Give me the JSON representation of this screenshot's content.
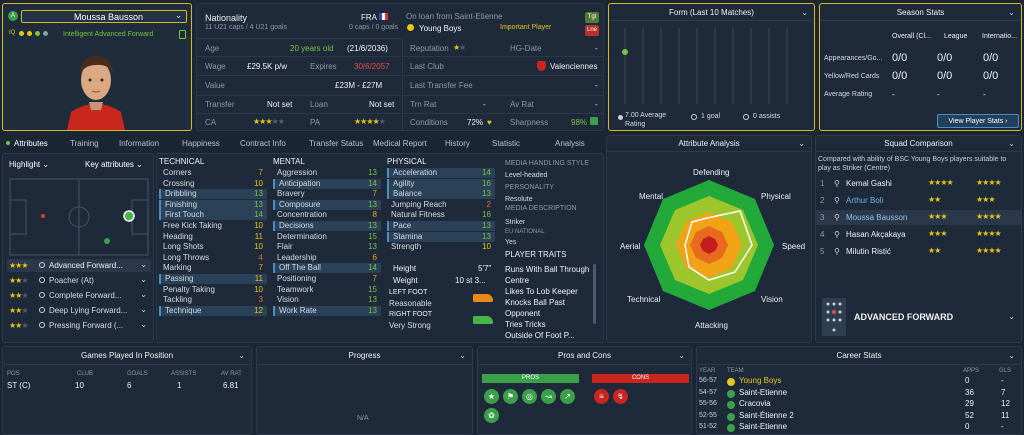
{
  "player": {
    "name": "Moussa Bausson",
    "role_line": "Intelligent Advanced Forward",
    "nationality_label": "Nationality",
    "nation": "FRA",
    "caps": "11 U21 caps / 4 U21 goals",
    "caps_right": "0 caps / 0 goals",
    "loan_text": "On loan from Saint-Etienne",
    "club": "Young Boys",
    "important": "Important Player",
    "age_label": "Age",
    "age": "20 years old",
    "dob": "(21/6/2036)",
    "wage_label": "Wage",
    "wage": "£29.5K p/w",
    "expires_label": "Expires",
    "expires": "30/6/2057",
    "value_label": "Value",
    "value": "£23M - £27M",
    "transfer_label": "Transfer",
    "transfer": "Not set",
    "loan_label": "Loan",
    "loan": "Not set",
    "ca_label": "CA",
    "pa_label": "PA",
    "reputation_label": "Reputation",
    "hgdate_label": "HG-Date",
    "hgdate": "-",
    "lastclub_label": "Last Club",
    "lastclub": "Valenciennes",
    "fee_label": "Last Transfer Fee",
    "fee": "-",
    "trnrat_label": "Trn Rat",
    "trnrat": "-",
    "avrat_label": "Av Rat",
    "avrat": "-",
    "conditions_label": "Conditions",
    "conditions": "72%",
    "sharpness_label": "Sharpness",
    "sharpness": "98%",
    "badge_tgt": "Tgt",
    "badge_lne": "Lne"
  },
  "form": {
    "title": "Form (Last 10 Matches)",
    "avg": "7.00 Average Rating",
    "goals": "1 goal",
    "assists": "0 assists"
  },
  "season": {
    "title": "Season Stats",
    "cols": [
      "Overall (Cl...",
      "League",
      "Internatio..."
    ],
    "rows": [
      {
        "label": "Appearances/Go...",
        "vals": [
          "0/0",
          "0/0",
          "0/0"
        ]
      },
      {
        "label": "Yellow/Red Cards",
        "vals": [
          "0/0",
          "0/0",
          "0/0"
        ]
      },
      {
        "label": "Average Rating",
        "vals": [
          "-",
          "-",
          "-"
        ]
      }
    ],
    "button": "View Player Stats"
  },
  "tabs": [
    "Attributes",
    "Training",
    "Information",
    "Happiness",
    "Contract Info",
    "Transfer Status",
    "Medical Report",
    "History",
    "Statistic",
    "Analysis"
  ],
  "left": {
    "highlight": "Highlight",
    "key_attributes": "Key attributes",
    "roles": [
      "Advanced Forward...",
      "Poacher (At)",
      "Complete Forward...",
      "Deep Lying Forward...",
      "Pressing Forward (..."
    ]
  },
  "technical": {
    "title": "TECHNICAL",
    "rows": [
      {
        "n": "Corners",
        "v": "7"
      },
      {
        "n": "Crossing",
        "v": "10"
      },
      {
        "n": "Dribbling",
        "v": "13"
      },
      {
        "n": "Finishing",
        "v": "13"
      },
      {
        "n": "First Touch",
        "v": "14"
      },
      {
        "n": "Free Kick Taking",
        "v": "10"
      },
      {
        "n": "Heading",
        "v": "11"
      },
      {
        "n": "Long Shots",
        "v": "10"
      },
      {
        "n": "Long Throws",
        "v": "4"
      },
      {
        "n": "Marking",
        "v": "7"
      },
      {
        "n": "Passing",
        "v": "11"
      },
      {
        "n": "Penalty Taking",
        "v": "10"
      },
      {
        "n": "Tackling",
        "v": "3"
      },
      {
        "n": "Technique",
        "v": "12"
      }
    ]
  },
  "mental": {
    "title": "MENTAL",
    "rows": [
      {
        "n": "Aggression",
        "v": "13"
      },
      {
        "n": "Anticipation",
        "v": "14"
      },
      {
        "n": "Bravery",
        "v": "7"
      },
      {
        "n": "Composure",
        "v": "13"
      },
      {
        "n": "Concentration",
        "v": "8"
      },
      {
        "n": "Decisions",
        "v": "13"
      },
      {
        "n": "Determination",
        "v": "15"
      },
      {
        "n": "Flair",
        "v": "13"
      },
      {
        "n": "Leadership",
        "v": "6"
      },
      {
        "n": "Off The Ball",
        "v": "14"
      },
      {
        "n": "Positioning",
        "v": "7"
      },
      {
        "n": "Teamwork",
        "v": "15"
      },
      {
        "n": "Vision",
        "v": "13"
      },
      {
        "n": "Work Rate",
        "v": "13"
      }
    ]
  },
  "physical": {
    "title": "PHYSICAL",
    "rows": [
      {
        "n": "Acceleration",
        "v": "14"
      },
      {
        "n": "Agility",
        "v": "16"
      },
      {
        "n": "Balance",
        "v": "13"
      },
      {
        "n": "Jumping Reach",
        "v": "2"
      },
      {
        "n": "Natural Fitness",
        "v": "16"
      },
      {
        "n": "Pace",
        "v": "13"
      },
      {
        "n": "Stamina",
        "v": "13"
      },
      {
        "n": "Strength",
        "v": "10"
      }
    ],
    "height_label": "Height",
    "height": "5'7\"",
    "weight_label": "Weight",
    "weight": "10 st 3...",
    "left_foot_label": "LEFT FOOT",
    "left_foot": "Reasonable",
    "right_foot_label": "RIGHT FOOT",
    "right_foot": "Very Strong"
  },
  "media": {
    "handling_title": "MEDIA HANDLING STYLE",
    "handling": "Level-headed",
    "personality_title": "PERSONALITY",
    "personality": "Resolute",
    "description_title": "MEDIA DESCRIPTION",
    "description": "Striker",
    "eu_title": "EU NATIONAL",
    "eu": "Yes",
    "traits_title": "PLAYER TRAITS",
    "traits": [
      "Runs With Ball Through",
      "Centre",
      "Likes To Lob Keeper",
      "Knocks Ball Past",
      "Opponent",
      "Tries Tricks",
      "Outside Of Foot P..."
    ]
  },
  "analysis": {
    "title": "Attribute Analysis",
    "labels": [
      "Defending",
      "Physical",
      "Speed",
      "Vision",
      "Attacking",
      "Technical",
      "Aerial",
      "Mental"
    ]
  },
  "squad": {
    "title": "Squad Comparison",
    "subtitle": "Compared with ability of BSC Young Boys players suitable to play as Striker (Centre)",
    "rows": [
      {
        "rank": "1",
        "name": "Kemal Gashi"
      },
      {
        "rank": "2",
        "name": "Arthur Boli"
      },
      {
        "rank": "3",
        "name": "Moussa Bausson"
      },
      {
        "rank": "4",
        "name": "Hasan Akçakaya"
      },
      {
        "rank": "5",
        "name": "Milutin Ristić"
      }
    ],
    "role": "ADVANCED FORWARD"
  },
  "games": {
    "title": "Games Played In Position",
    "cols": [
      "POS",
      "CLUB",
      "GOALS",
      "ASSISTS",
      "AV RAT"
    ],
    "row": [
      "ST (C)",
      "10",
      "6",
      "1",
      "6.81"
    ]
  },
  "progress": {
    "title": "Progress",
    "na": "N/A"
  },
  "proscons": {
    "title": "Pros and Cons",
    "pros": "PROS",
    "cons": "CONS"
  },
  "career": {
    "title": "Career Stats",
    "cols": [
      "YEAR",
      "TEAM",
      "APPS",
      "GLS"
    ],
    "rows": [
      {
        "year": "56-57",
        "team": "Young Boys",
        "apps": "0",
        "gls": "-"
      },
      {
        "year": "54-57",
        "team": "Saint-Etienne",
        "apps": "36",
        "gls": "7"
      },
      {
        "year": "55-56",
        "team": "Cracovia",
        "apps": "29",
        "gls": "12"
      },
      {
        "year": "52-55",
        "team": "Saint-Étienne 2",
        "apps": "52",
        "gls": "11"
      },
      {
        "year": "51-52",
        "team": "Saint-Etienne",
        "apps": "0",
        "gls": "-"
      }
    ]
  }
}
